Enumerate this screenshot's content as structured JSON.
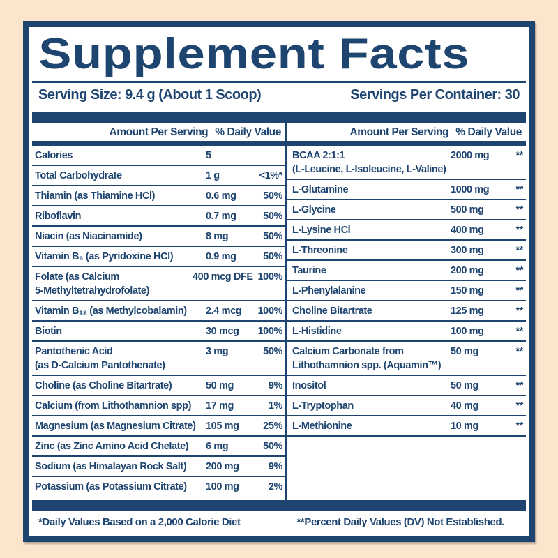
{
  "title": "Supplement Facts",
  "serving": {
    "size": "Serving Size: 9.4 g (About 1 Scoop)",
    "per_container": "Servings Per Container: 30"
  },
  "columns": {
    "amount_header": "Amount Per Serving",
    "dv_header": "% Daily Value"
  },
  "left_rows": [
    {
      "name": "Calories",
      "amount": "5",
      "dv": ""
    },
    {
      "name": "Total Carbohydrate",
      "amount": "1 g",
      "dv": "<1%*"
    },
    {
      "name": "Thiamin (as Thiamine HCl)",
      "amount": "0.6 mg",
      "dv": "50%"
    },
    {
      "name": "Riboflavin",
      "amount": "0.7 mg",
      "dv": "50%"
    },
    {
      "name": "Niacin (as Niacinamide)",
      "amount": "8 mg",
      "dv": "50%"
    },
    {
      "name": "Vitamin B₆ (as Pyridoxine HCl)",
      "amount": "0.9 mg",
      "dv": "50%"
    },
    {
      "name": "Folate (as Calcium\n5-Methyltetrahydrofolate)",
      "amount": "400 mcg DFE",
      "dv": "100%"
    },
    {
      "name": "Vitamin B₁₂ (as Methylcobalamin)",
      "amount": "2.4 mcg",
      "dv": "100%"
    },
    {
      "name": "Biotin",
      "amount": "30 mcg",
      "dv": "100%"
    },
    {
      "name": "Pantothenic Acid\n(as D-Calcium Pantothenate)",
      "amount": "3 mg",
      "dv": "50%"
    },
    {
      "name": "Choline (as Choline Bitartrate)",
      "amount": "50 mg",
      "dv": "9%"
    },
    {
      "name": "Calcium (from Lithothamnion spp)",
      "amount": "17 mg",
      "dv": "1%"
    },
    {
      "name": "Magnesium (as Magnesium Citrate)",
      "amount": "105 mg",
      "dv": "25%"
    },
    {
      "name": "Zinc (as Zinc Amino Acid Chelate)",
      "amount": "6 mg",
      "dv": "50%"
    },
    {
      "name": "Sodium (as Himalayan Rock Salt)",
      "amount": "200 mg",
      "dv": "9%"
    },
    {
      "name": "Potassium (as Potassium Citrate)",
      "amount": "100 mg",
      "dv": "2%"
    }
  ],
  "right_rows": [
    {
      "name": "BCAA 2:1:1\n(L-Leucine, L-Isoleucine, L-Valine)",
      "amount": "2000 mg",
      "dv": "**"
    },
    {
      "name": "L-Glutamine",
      "amount": "1000 mg",
      "dv": "**"
    },
    {
      "name": "L-Glycine",
      "amount": "500 mg",
      "dv": "**"
    },
    {
      "name": "L-Lysine HCl",
      "amount": "400 mg",
      "dv": "**"
    },
    {
      "name": "L-Threonine",
      "amount": "300 mg",
      "dv": "**"
    },
    {
      "name": "Taurine",
      "amount": "200 mg",
      "dv": "**"
    },
    {
      "name": "L-Phenylalanine",
      "amount": "150 mg",
      "dv": "**"
    },
    {
      "name": "Choline Bitartrate",
      "amount": "125 mg",
      "dv": "**"
    },
    {
      "name": "L-Histidine",
      "amount": "100 mg",
      "dv": "**"
    },
    {
      "name": "Calcium Carbonate from\nLithothamnion spp. (Aquamin™)",
      "amount": "50 mg",
      "dv": "**"
    },
    {
      "name": "Inositol",
      "amount": "50 mg",
      "dv": "**"
    },
    {
      "name": "L-Tryptophan",
      "amount": "40 mg",
      "dv": "**"
    },
    {
      "name": "L-Methionine",
      "amount": "10 mg",
      "dv": "**"
    }
  ],
  "footnotes": {
    "daily_values": "*Daily Values Based on a 2,000 Calorie Diet",
    "not_established": "**Percent Daily Values (DV) Not Established."
  },
  "colors": {
    "navy": "#1e4470",
    "peach": "#fce5cd",
    "panel": "#ffffff"
  }
}
